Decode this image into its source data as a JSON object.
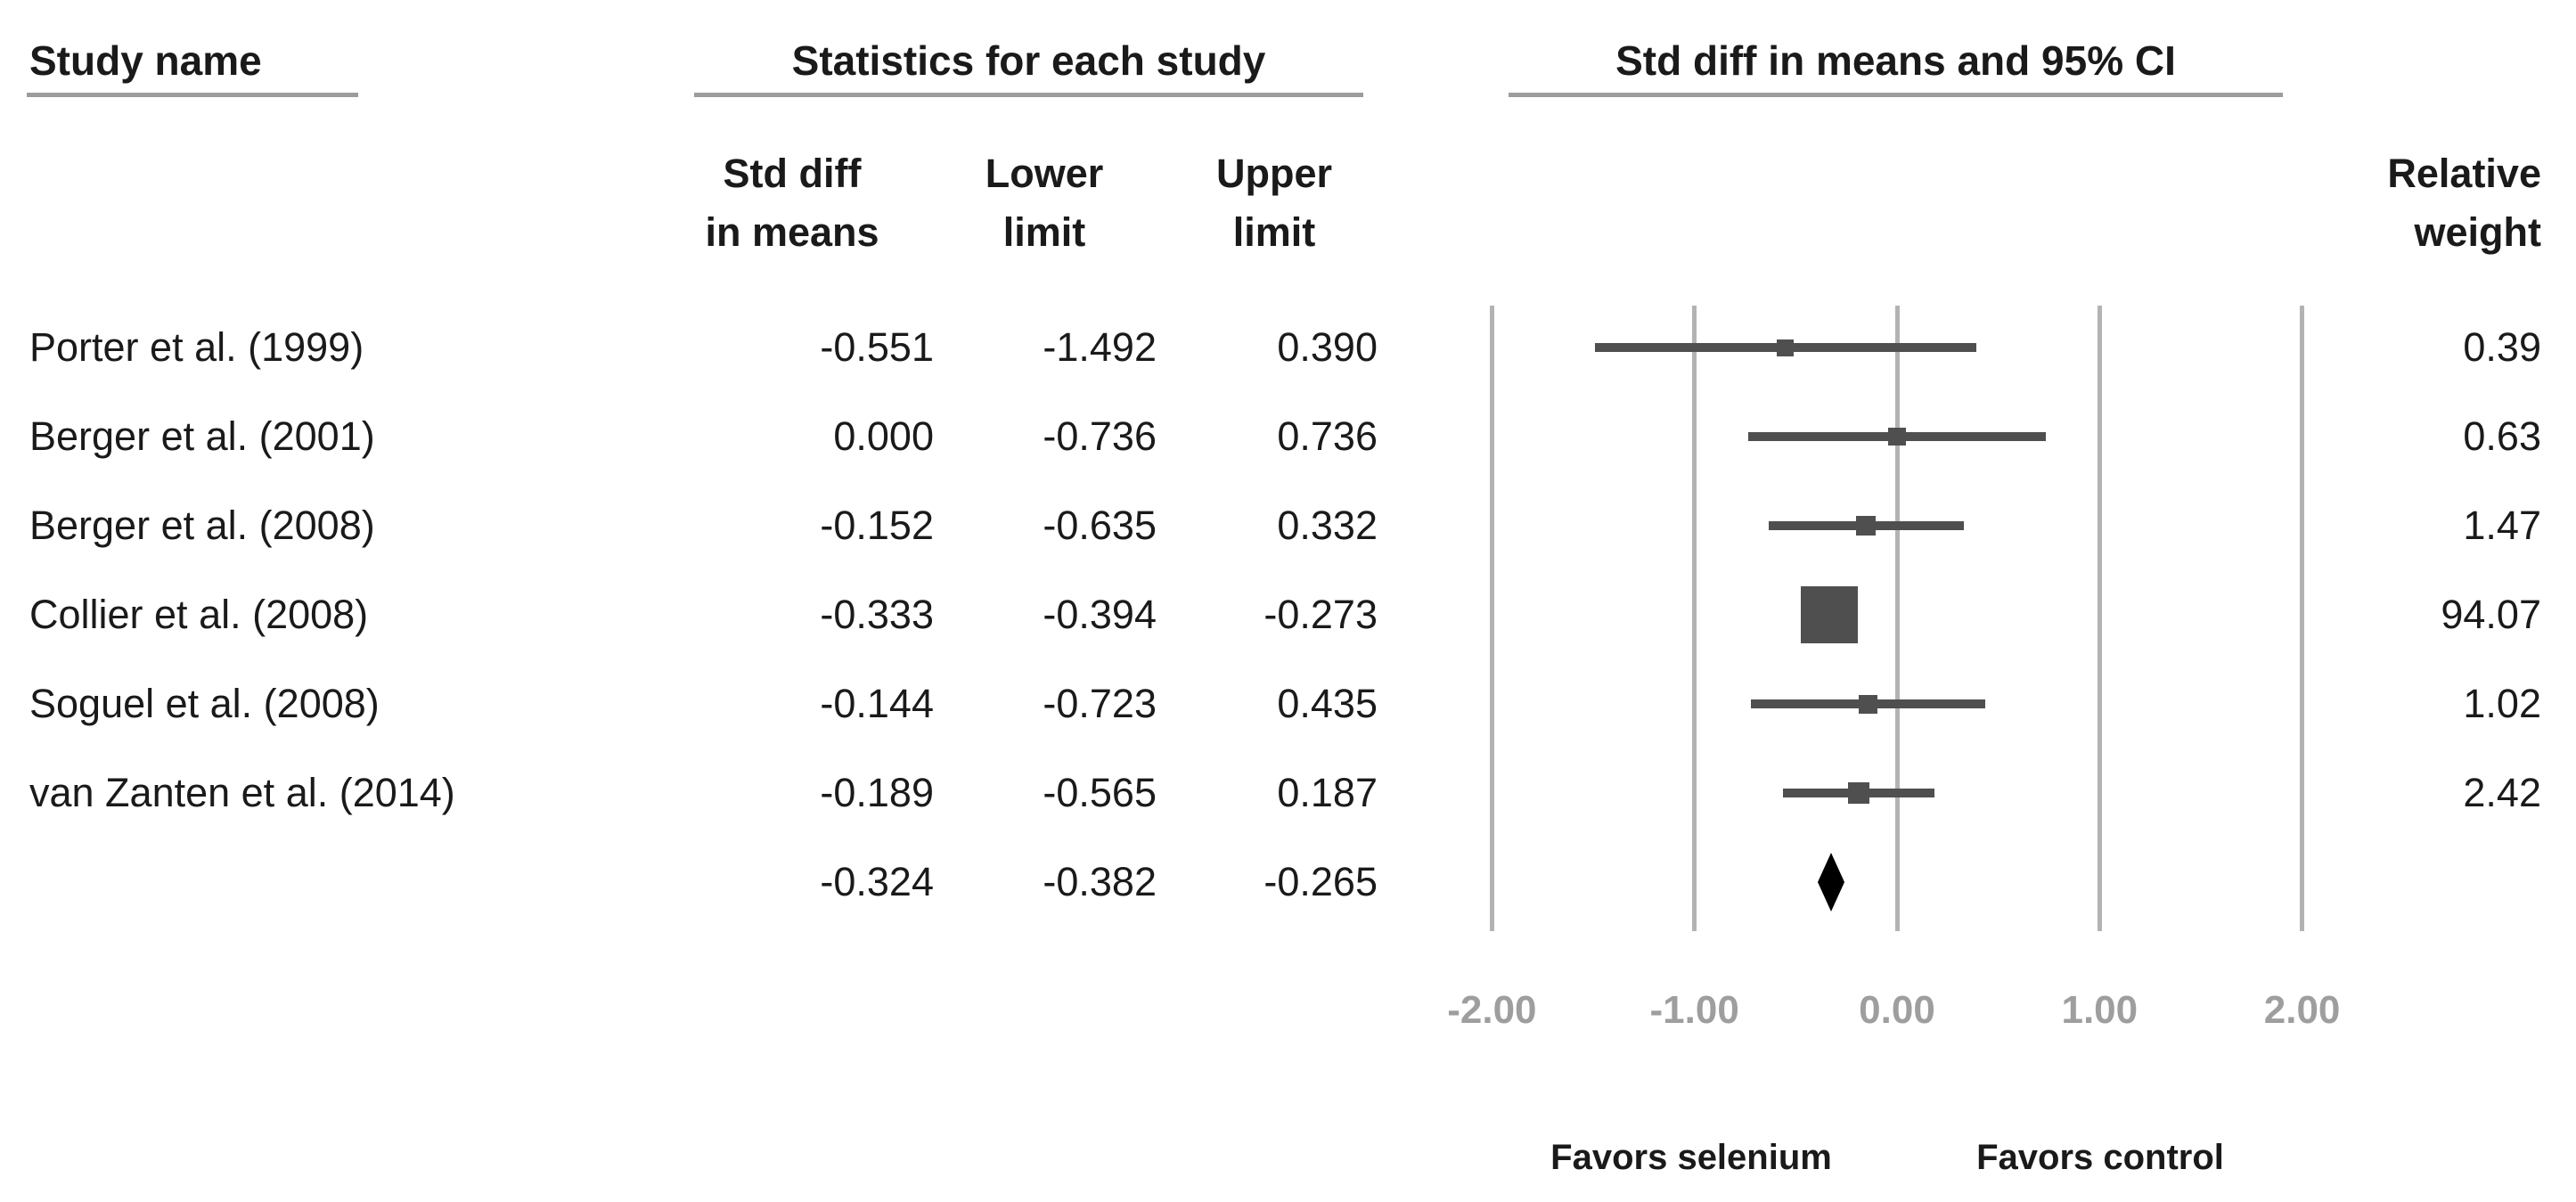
{
  "headers": {
    "study_name": "Study name",
    "statistics": "Statistics for each study",
    "plot_title": "Std diff in means and 95% CI"
  },
  "column_headers": {
    "std_diff": "Std diff\nin means",
    "lower": "Lower\nlimit",
    "upper": "Upper\nlimit",
    "relative_weight": "Relative\nweight"
  },
  "footer": {
    "favors_left": "Favors selenium",
    "favors_right": "Favors control"
  },
  "colors": {
    "text": "#1a1a1a",
    "grid_line": "#b3b3b3",
    "underline": "#9c9c9c",
    "ci_bar": "#4f4f4f",
    "marker": "#4f4f4f",
    "diamond": "#000000",
    "tick_label": "#9e9e9e",
    "background": "#ffffff"
  },
  "chart_data": {
    "type": "scatter",
    "subtype": "forest-plot",
    "title": "Std diff in means and 95% CI",
    "xlabel": "Std diff in means",
    "xlim": [
      -2.0,
      2.0
    ],
    "grid": "vertical-lines-at-ticks",
    "x_ticks": [
      -2.0,
      -1.0,
      0.0,
      1.0,
      2.0
    ],
    "x_tick_labels": [
      "-2.00",
      "-1.00",
      "0.00",
      "1.00",
      "2.00"
    ],
    "favors_left_label": "Favors selenium",
    "favors_left_at_x": -1.0,
    "favors_right_label": "Favors control",
    "favors_right_at_x": 1.0,
    "studies": [
      {
        "name": "Porter et al. (1999)",
        "std_diff": -0.551,
        "lower": -1.492,
        "upper": 0.39,
        "relative_weight": 0.39,
        "std_diff_text": "-0.551",
        "lower_text": "-1.492",
        "upper_text": "0.390",
        "weight_text": "0.39"
      },
      {
        "name": "Berger et al. (2001)",
        "std_diff": 0.0,
        "lower": -0.736,
        "upper": 0.736,
        "relative_weight": 0.63,
        "std_diff_text": "0.000",
        "lower_text": "-0.736",
        "upper_text": "0.736",
        "weight_text": "0.63"
      },
      {
        "name": "Berger et al. (2008)",
        "std_diff": -0.152,
        "lower": -0.635,
        "upper": 0.332,
        "relative_weight": 1.47,
        "std_diff_text": "-0.152",
        "lower_text": "-0.635",
        "upper_text": "0.332",
        "weight_text": "1.47"
      },
      {
        "name": "Collier et al. (2008)",
        "std_diff": -0.333,
        "lower": -0.394,
        "upper": -0.273,
        "relative_weight": 94.07,
        "std_diff_text": "-0.333",
        "lower_text": "-0.394",
        "upper_text": "-0.273",
        "weight_text": "94.07"
      },
      {
        "name": "Soguel et al. (2008)",
        "std_diff": -0.144,
        "lower": -0.723,
        "upper": 0.435,
        "relative_weight": 1.02,
        "std_diff_text": "-0.144",
        "lower_text": "-0.723",
        "upper_text": "0.435",
        "weight_text": "1.02"
      },
      {
        "name": "van Zanten et al. (2014)",
        "std_diff": -0.189,
        "lower": -0.565,
        "upper": 0.187,
        "relative_weight": 2.42,
        "std_diff_text": "-0.189",
        "lower_text": "-0.565",
        "upper_text": "0.187",
        "weight_text": "2.42"
      }
    ],
    "summary": {
      "name": "",
      "std_diff": -0.324,
      "lower": -0.382,
      "upper": -0.265,
      "std_diff_text": "-0.324",
      "lower_text": "-0.382",
      "upper_text": "-0.265",
      "marker": "diamond"
    }
  }
}
